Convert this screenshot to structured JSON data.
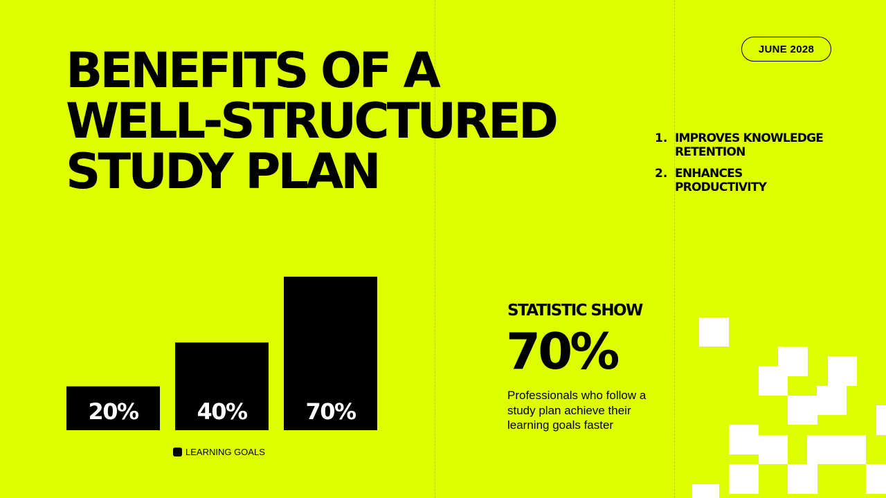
{
  "title": {
    "line1": "BENEFITS OF A",
    "line2": "WELL-STRUCTURED",
    "line3": "STUDY PLAN"
  },
  "date": "JUNE 2028",
  "benefits": [
    {
      "number": "1.",
      "text_line1": "IMPROVES KNOWLEDGE",
      "text_line2": "RETENTION"
    },
    {
      "number": "2.",
      "text_line1": "ENHANCES",
      "text_line2": "PRODUCTIVITY"
    }
  ],
  "statistic": {
    "label": "STATISTIC SHOW",
    "value": "70%",
    "description": "Professionals who follow a study plan achieve their learning goals faster"
  },
  "colors": {
    "background": "#DDFF00",
    "bar": "#000000",
    "bar_label": "#FFFFFF",
    "decoration": "#FFFFFF"
  },
  "chart_data": {
    "type": "bar",
    "categories": [
      "20%",
      "40%",
      "70%"
    ],
    "series": [
      {
        "name": "LEARNING GOALS",
        "values": [
          20,
          40,
          70
        ]
      }
    ],
    "data_labels": [
      "20%",
      "40%",
      "70%"
    ],
    "ylim": [
      0,
      70
    ],
    "legend": "bottom",
    "grid": false
  }
}
